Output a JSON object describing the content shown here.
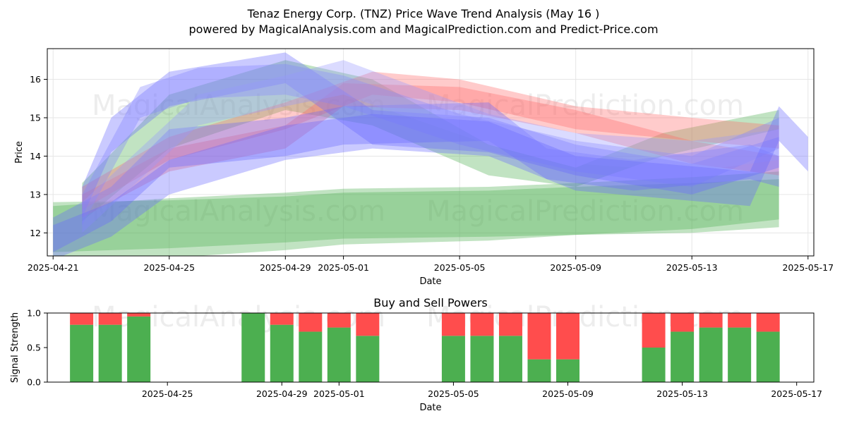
{
  "chart_data": [
    {
      "type": "area",
      "title": "Tenaz Energy Corp. (TNZ) Price Wave Trend Analysis (May 16 )",
      "subtitle": "powered by MagicalAnalysis.com and MagicalPrediction.com and Predict-Price.com",
      "xlabel": "Date",
      "ylabel": "Price",
      "xlim": [
        "2025-04-20.8",
        "2025-05-17.2"
      ],
      "ylim": [
        11.4,
        16.8
      ],
      "x_ticks": [
        "2025-04-21",
        "2025-04-25",
        "2025-04-29",
        "2025-05-01",
        "2025-05-05",
        "2025-05-09",
        "2025-05-13",
        "2025-05-17"
      ],
      "y_ticks": [
        12,
        13,
        14,
        15,
        16
      ],
      "grid": true,
      "watermarks": [
        "MagicalAnalysis.com",
        "MagicalPrediction.com"
      ],
      "series": [
        {
          "name": "green-band-a",
          "color": "#4caf50",
          "x": [
            "2025-04-21",
            "2025-04-25",
            "2025-04-29",
            "2025-05-01",
            "2025-05-06",
            "2025-05-09",
            "2025-05-13",
            "2025-05-16"
          ],
          "upper": [
            12.8,
            12.85,
            12.95,
            13.05,
            13.1,
            13.2,
            13.3,
            13.4
          ],
          "lower": [
            11.5,
            11.6,
            11.75,
            11.85,
            11.9,
            11.95,
            12.0,
            12.15
          ]
        },
        {
          "name": "green-band-b",
          "color": "#4caf50",
          "x": [
            "2025-04-21",
            "2025-04-25",
            "2025-04-29",
            "2025-05-01",
            "2025-05-06",
            "2025-05-09",
            "2025-05-13",
            "2025-05-16"
          ],
          "upper": [
            12.7,
            12.9,
            13.05,
            13.15,
            13.2,
            13.3,
            13.45,
            13.6
          ],
          "lower": [
            11.2,
            11.35,
            11.55,
            11.7,
            11.8,
            11.95,
            12.1,
            12.35
          ]
        },
        {
          "name": "green-band-c",
          "color": "#4caf50",
          "x": [
            "2025-04-22",
            "2025-04-25",
            "2025-04-29",
            "2025-05-02",
            "2025-05-06",
            "2025-05-09",
            "2025-05-12",
            "2025-05-16"
          ],
          "upper": [
            13.3,
            15.6,
            16.5,
            16.0,
            14.3,
            13.7,
            14.6,
            15.2
          ],
          "lower": [
            12.3,
            14.2,
            15.2,
            14.8,
            13.5,
            13.2,
            14.0,
            14.7
          ]
        },
        {
          "name": "red-band-a",
          "color": "#ff6b6b",
          "x": [
            "2025-04-22",
            "2025-04-25",
            "2025-04-29",
            "2025-05-02",
            "2025-05-05",
            "2025-05-09",
            "2025-05-13",
            "2025-05-16"
          ],
          "upper": [
            13.2,
            14.5,
            15.4,
            16.2,
            16.0,
            15.3,
            15.0,
            14.8
          ],
          "lower": [
            12.6,
            13.9,
            14.7,
            15.6,
            15.4,
            14.7,
            14.4,
            14.2
          ]
        },
        {
          "name": "red-band-b",
          "color": "#ff6b6b",
          "x": [
            "2025-04-22",
            "2025-04-25",
            "2025-04-29",
            "2025-05-01",
            "2025-05-05",
            "2025-05-09",
            "2025-05-13",
            "2025-05-16"
          ],
          "upper": [
            13.0,
            14.2,
            14.8,
            15.9,
            15.8,
            15.2,
            14.4,
            14.0
          ],
          "lower": [
            12.4,
            13.6,
            14.2,
            15.3,
            15.2,
            14.6,
            13.8,
            13.5
          ]
        },
        {
          "name": "blue-band-a",
          "color": "#6666ff",
          "x": [
            "2025-04-21",
            "2025-04-23",
            "2025-04-25",
            "2025-04-29",
            "2025-05-01",
            "2025-05-06",
            "2025-05-08",
            "2025-05-11",
            "2025-05-15",
            "2025-05-16"
          ],
          "upper": [
            12.4,
            13.2,
            14.7,
            15.0,
            15.3,
            15.4,
            14.2,
            13.9,
            14.3,
            14.0
          ],
          "lower": [
            11.5,
            12.3,
            13.7,
            14.0,
            14.3,
            14.4,
            13.4,
            13.1,
            13.4,
            13.2
          ]
        },
        {
          "name": "blue-band-b",
          "color": "#6666ff",
          "x": [
            "2025-04-22",
            "2025-04-23",
            "2025-04-25",
            "2025-04-29",
            "2025-05-02",
            "2025-05-06",
            "2025-05-09",
            "2025-05-13",
            "2025-05-16"
          ],
          "upper": [
            13.2,
            15.0,
            16.2,
            16.7,
            15.2,
            15.0,
            14.3,
            13.8,
            14.5
          ],
          "lower": [
            12.4,
            14.1,
            15.3,
            15.9,
            14.3,
            14.1,
            13.5,
            13.0,
            13.7
          ]
        },
        {
          "name": "blue-band-c",
          "color": "#8080ff",
          "x": [
            "2025-04-22",
            "2025-04-24",
            "2025-04-26",
            "2025-04-29",
            "2025-05-01",
            "2025-05-05",
            "2025-05-09",
            "2025-05-13",
            "2025-05-16"
          ],
          "upper": [
            13.0,
            15.8,
            16.3,
            16.4,
            16.1,
            15.1,
            14.4,
            14.0,
            15.0
          ],
          "lower": [
            12.2,
            15.0,
            15.5,
            15.6,
            15.3,
            14.3,
            13.6,
            13.2,
            14.2
          ]
        },
        {
          "name": "blue-band-d",
          "color": "#9999ff",
          "x": [
            "2025-04-22",
            "2025-04-24",
            "2025-04-26",
            "2025-04-29",
            "2025-05-01",
            "2025-05-06",
            "2025-05-09",
            "2025-05-13",
            "2025-05-16"
          ],
          "upper": [
            12.8,
            14.2,
            15.6,
            16.1,
            16.5,
            15.1,
            14.6,
            14.4,
            14.7
          ],
          "lower": [
            12.0,
            13.4,
            14.8,
            15.3,
            15.6,
            14.3,
            13.8,
            13.6,
            13.9
          ]
        },
        {
          "name": "blue-band-e",
          "color": "#6666ff",
          "x": [
            "2025-04-21",
            "2025-04-23",
            "2025-04-25",
            "2025-04-29",
            "2025-05-02",
            "2025-05-06",
            "2025-05-09",
            "2025-05-12",
            "2025-05-15",
            "2025-05-16",
            "2025-05-17"
          ],
          "upper": [
            12.2,
            12.8,
            13.9,
            14.8,
            15.1,
            14.9,
            14.0,
            13.8,
            13.6,
            15.3,
            14.5
          ],
          "lower": [
            11.3,
            11.9,
            13.0,
            13.9,
            14.2,
            14.0,
            13.1,
            12.9,
            12.7,
            14.4,
            13.6
          ]
        }
      ]
    },
    {
      "type": "bar",
      "title": "Buy and Sell Powers",
      "xlabel": "Date",
      "ylabel": "Signal Strength",
      "ylim": [
        0.0,
        1.0
      ],
      "y_ticks": [
        "0.0",
        "0.5",
        "1.0"
      ],
      "x_ticks": [
        "2025-04-25",
        "2025-04-29",
        "2025-05-01",
        "2025-05-05",
        "2025-05-09",
        "2025-05-13",
        "2025-05-17"
      ],
      "colors": {
        "buy": "#4caf50",
        "sell": "#ff4d4d"
      },
      "dates": [
        "2025-04-22",
        "2025-04-23",
        "2025-04-24",
        "2025-04-28",
        "2025-04-29",
        "2025-04-30",
        "2025-05-01",
        "2025-05-02",
        "2025-05-05",
        "2025-05-06",
        "2025-05-07",
        "2025-05-08",
        "2025-05-09",
        "2025-05-12",
        "2025-05-13",
        "2025-05-14",
        "2025-05-15",
        "2025-05-16"
      ],
      "buy": [
        0.83,
        0.83,
        0.95,
        1.0,
        0.83,
        0.73,
        0.79,
        0.67,
        0.67,
        0.67,
        0.67,
        0.33,
        0.33,
        0.5,
        0.73,
        0.79,
        0.79,
        0.73
      ]
    }
  ]
}
